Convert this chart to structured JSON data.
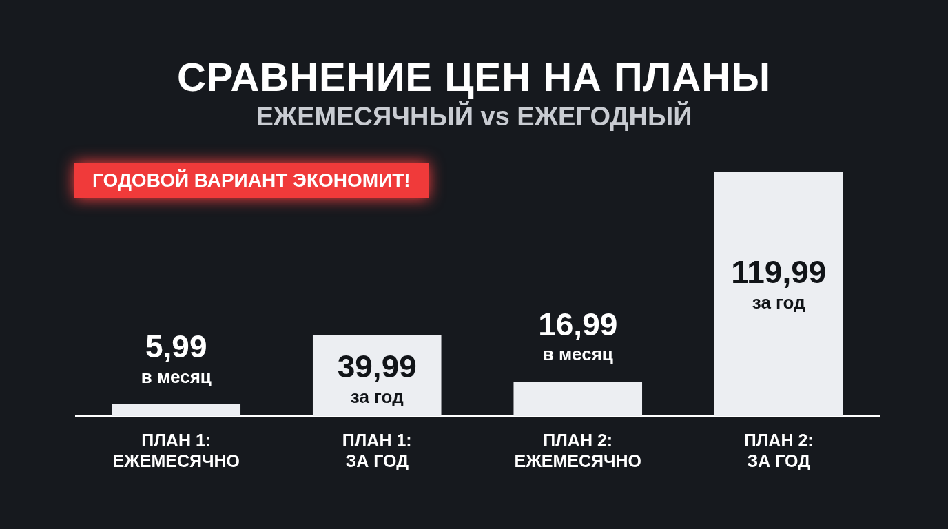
{
  "chart_data": {
    "type": "bar",
    "title": "СРАВНЕНИЕ ЦЕН НА ПЛАНЫ",
    "subtitle": "ЕЖЕМЕСЯЧНЫЙ vs ЕЖЕГОДНЫЙ",
    "annotations": [
      "ГОДОВОЙ ВАРИАНТ ЭКОНОМИТ!"
    ],
    "categories": [
      "ПЛАН 1:\nЕЖЕМЕСЯЧНО",
      "ПЛАН 1:\nЗА ГОД",
      "ПЛАН 2:\nЕЖЕМЕСЯЧНО",
      "ПЛАН 2:\nЗА ГОД"
    ],
    "values": [
      5.99,
      39.99,
      16.99,
      119.99
    ],
    "value_labels": [
      "5,99\nв месяц",
      "39,99\nза год",
      "16,99\nв месяц",
      "119,99\nза год"
    ],
    "color": "#eceef2",
    "legend": false
  }
}
